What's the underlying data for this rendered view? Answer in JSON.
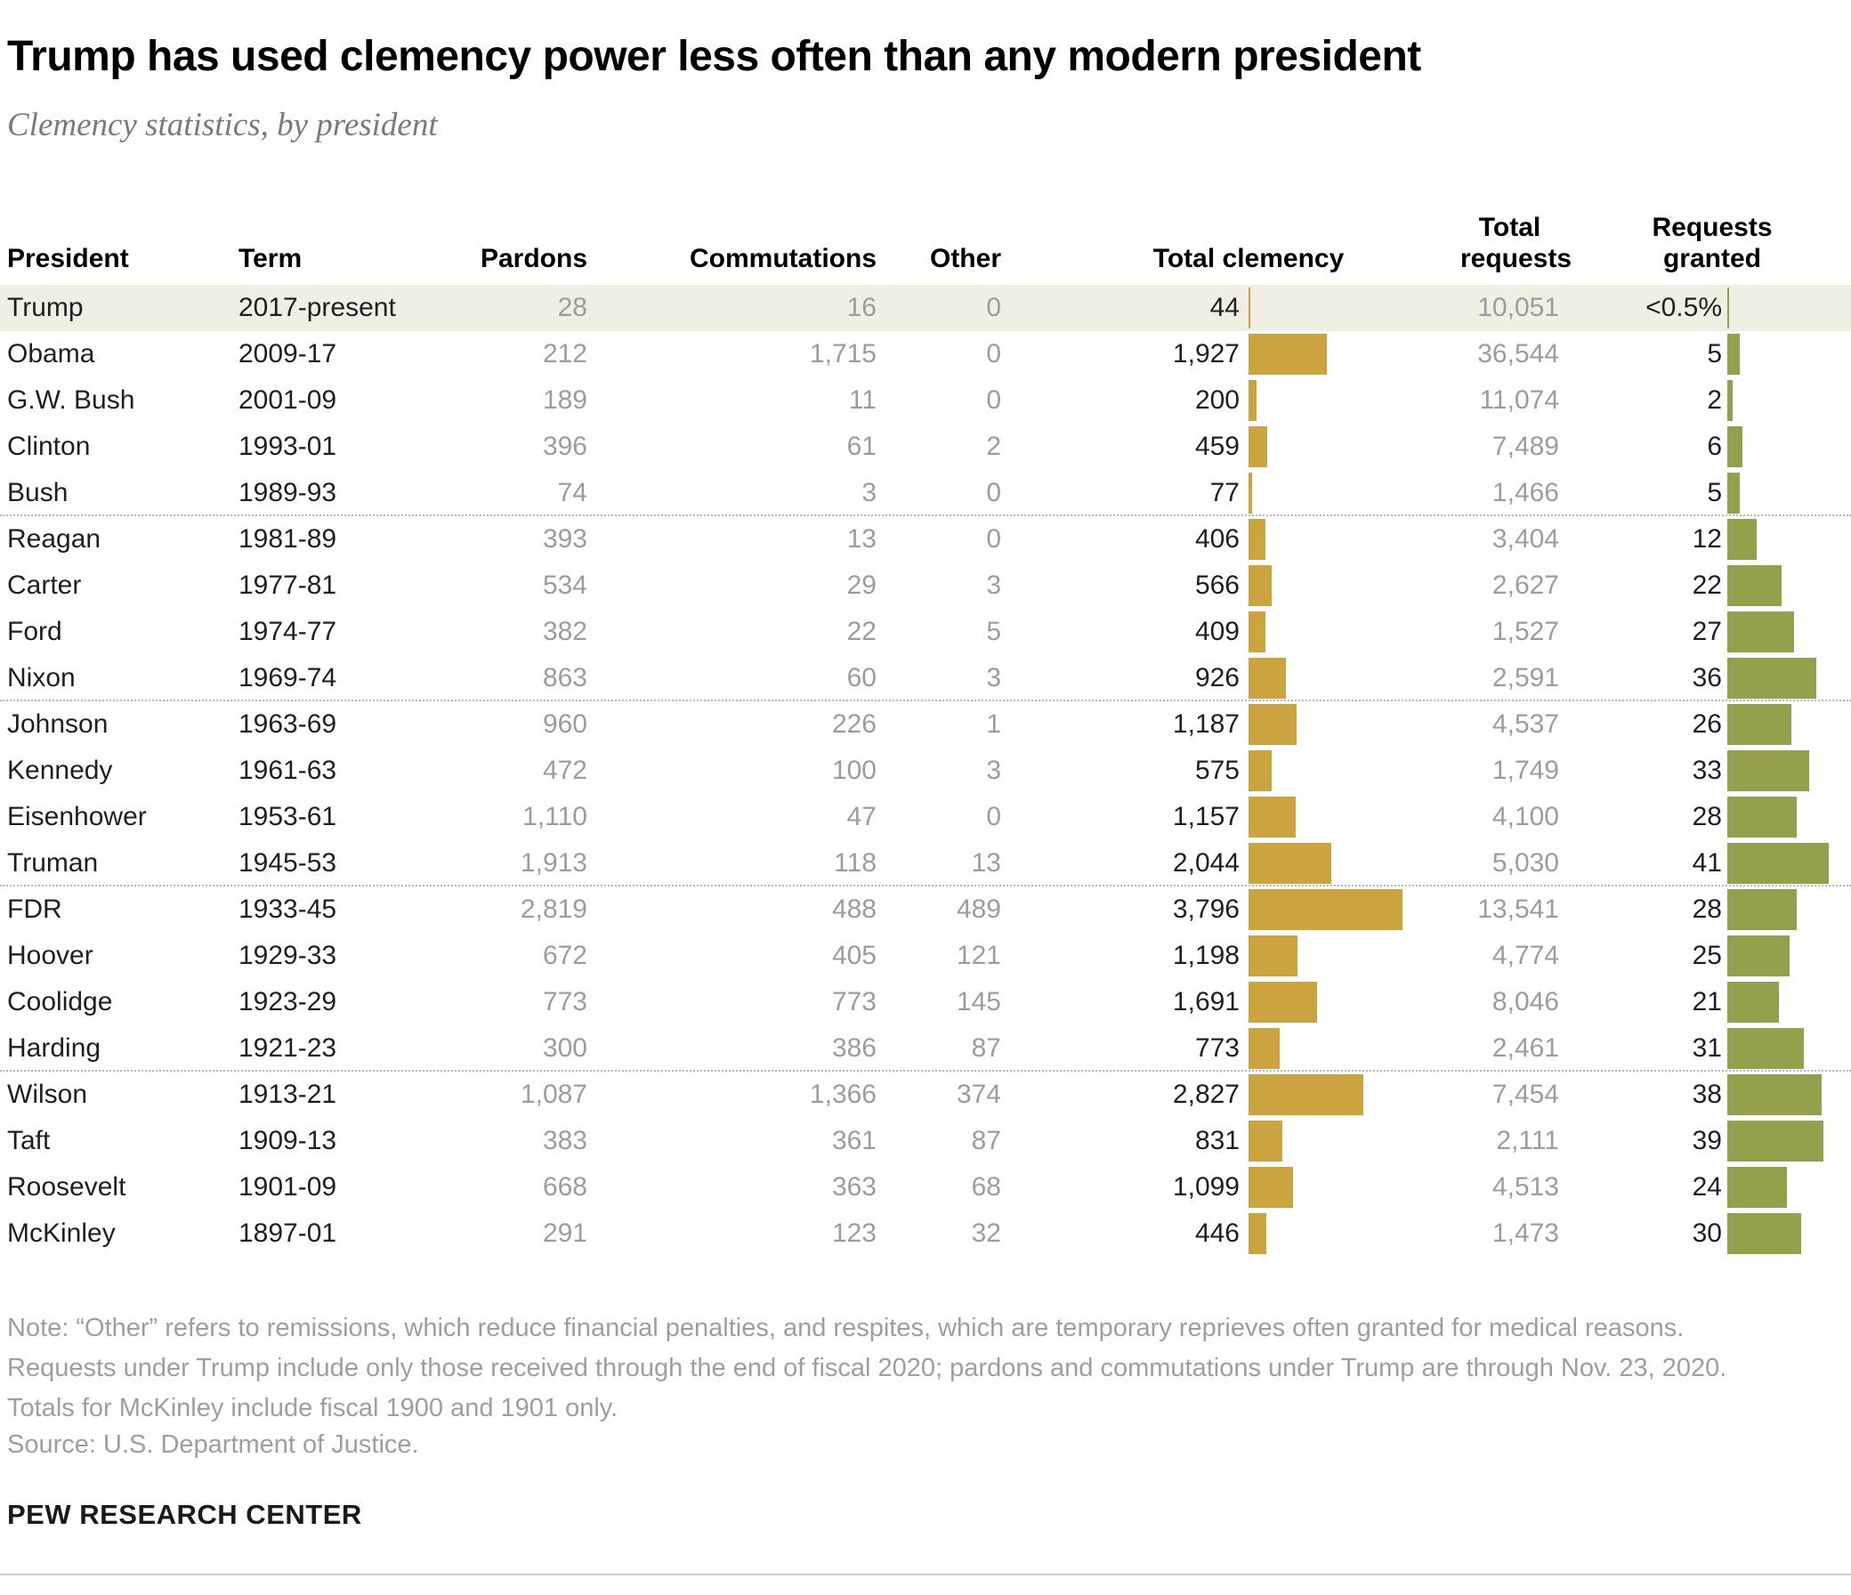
{
  "header": {
    "title": "Trump has used clemency power less often than any modern president",
    "subtitle": "Clemency statistics, by president"
  },
  "chart_data": {
    "type": "table",
    "title": "Trump has used clemency power less often than any modern president",
    "subtitle": "Clemency statistics, by president",
    "columns": [
      {
        "key": "president",
        "label": "President"
      },
      {
        "key": "term",
        "label": "Term"
      },
      {
        "key": "pardons",
        "label": "Pardons"
      },
      {
        "key": "commutations",
        "label": "Commutations"
      },
      {
        "key": "other",
        "label": "Other"
      },
      {
        "key": "total_clemency",
        "label": "Total clemency"
      },
      {
        "key": "total_requests",
        "label": "Total requests"
      },
      {
        "key": "requests_granted",
        "label": "Requests granted"
      }
    ],
    "bar_series": [
      {
        "name": "Total clemency",
        "color": "#cba440",
        "axis_max": 3796,
        "values": [
          44,
          1927,
          200,
          459,
          77,
          406,
          566,
          409,
          926,
          1187,
          575,
          1157,
          2044,
          3796,
          1198,
          1691,
          773,
          2827,
          831,
          1099,
          446
        ]
      },
      {
        "name": "Requests granted (%)",
        "color": "#94a04c",
        "axis_max": 41,
        "values": [
          0.5,
          5,
          2,
          6,
          5,
          12,
          22,
          27,
          36,
          26,
          33,
          28,
          41,
          28,
          25,
          21,
          31,
          38,
          39,
          24,
          30
        ]
      }
    ],
    "rows": [
      {
        "president": "Trump",
        "term": "2017-present",
        "pardons": "28",
        "commutations": "16",
        "other": "0",
        "total_clemency": "44",
        "total_requests": "10,051",
        "requests_granted": "<0.5%",
        "highlight": true
      },
      {
        "president": "Obama",
        "term": "2009-17",
        "pardons": "212",
        "commutations": "1,715",
        "other": "0",
        "total_clemency": "1,927",
        "total_requests": "36,544",
        "requests_granted": "5"
      },
      {
        "president": "G.W. Bush",
        "term": "2001-09",
        "pardons": "189",
        "commutations": "11",
        "other": "0",
        "total_clemency": "200",
        "total_requests": "11,074",
        "requests_granted": "2"
      },
      {
        "president": "Clinton",
        "term": "1993-01",
        "pardons": "396",
        "commutations": "61",
        "other": "2",
        "total_clemency": "459",
        "total_requests": "7,489",
        "requests_granted": "6"
      },
      {
        "president": "Bush",
        "term": "1989-93",
        "pardons": "74",
        "commutations": "3",
        "other": "0",
        "total_clemency": "77",
        "total_requests": "1,466",
        "requests_granted": "5",
        "separator_after": true
      },
      {
        "president": "Reagan",
        "term": "1981-89",
        "pardons": "393",
        "commutations": "13",
        "other": "0",
        "total_clemency": "406",
        "total_requests": "3,404",
        "requests_granted": "12"
      },
      {
        "president": "Carter",
        "term": "1977-81",
        "pardons": "534",
        "commutations": "29",
        "other": "3",
        "total_clemency": "566",
        "total_requests": "2,627",
        "requests_granted": "22"
      },
      {
        "president": "Ford",
        "term": "1974-77",
        "pardons": "382",
        "commutations": "22",
        "other": "5",
        "total_clemency": "409",
        "total_requests": "1,527",
        "requests_granted": "27"
      },
      {
        "president": "Nixon",
        "term": "1969-74",
        "pardons": "863",
        "commutations": "60",
        "other": "3",
        "total_clemency": "926",
        "total_requests": "2,591",
        "requests_granted": "36",
        "separator_after": true
      },
      {
        "president": "Johnson",
        "term": "1963-69",
        "pardons": "960",
        "commutations": "226",
        "other": "1",
        "total_clemency": "1,187",
        "total_requests": "4,537",
        "requests_granted": "26"
      },
      {
        "president": "Kennedy",
        "term": "1961-63",
        "pardons": "472",
        "commutations": "100",
        "other": "3",
        "total_clemency": "575",
        "total_requests": "1,749",
        "requests_granted": "33"
      },
      {
        "president": "Eisenhower",
        "term": "1953-61",
        "pardons": "1,110",
        "commutations": "47",
        "other": "0",
        "total_clemency": "1,157",
        "total_requests": "4,100",
        "requests_granted": "28"
      },
      {
        "president": "Truman",
        "term": "1945-53",
        "pardons": "1,913",
        "commutations": "118",
        "other": "13",
        "total_clemency": "2,044",
        "total_requests": "5,030",
        "requests_granted": "41",
        "separator_after": true
      },
      {
        "president": "FDR",
        "term": "1933-45",
        "pardons": "2,819",
        "commutations": "488",
        "other": "489",
        "total_clemency": "3,796",
        "total_requests": "13,541",
        "requests_granted": "28"
      },
      {
        "president": "Hoover",
        "term": "1929-33",
        "pardons": "672",
        "commutations": "405",
        "other": "121",
        "total_clemency": "1,198",
        "total_requests": "4,774",
        "requests_granted": "25"
      },
      {
        "president": "Coolidge",
        "term": "1923-29",
        "pardons": "773",
        "commutations": "773",
        "other": "145",
        "total_clemency": "1,691",
        "total_requests": "8,046",
        "requests_granted": "21"
      },
      {
        "president": "Harding",
        "term": "1921-23",
        "pardons": "300",
        "commutations": "386",
        "other": "87",
        "total_clemency": "773",
        "total_requests": "2,461",
        "requests_granted": "31",
        "separator_after": true
      },
      {
        "president": "Wilson",
        "term": "1913-21",
        "pardons": "1,087",
        "commutations": "1,366",
        "other": "374",
        "total_clemency": "2,827",
        "total_requests": "7,454",
        "requests_granted": "38"
      },
      {
        "president": "Taft",
        "term": "1909-13",
        "pardons": "383",
        "commutations": "361",
        "other": "87",
        "total_clemency": "831",
        "total_requests": "2,111",
        "requests_granted": "39"
      },
      {
        "president": "Roosevelt",
        "term": "1901-09",
        "pardons": "668",
        "commutations": "363",
        "other": "68",
        "total_clemency": "1,099",
        "total_requests": "4,513",
        "requests_granted": "24"
      },
      {
        "president": "McKinley",
        "term": "1897-01",
        "pardons": "291",
        "commutations": "123",
        "other": "32",
        "total_clemency": "446",
        "total_requests": "1,473",
        "requests_granted": "30"
      }
    ]
  },
  "colors": {
    "clemency_bar": "#cba440",
    "granted_bar": "#94a04c",
    "highlight_row": "#f0efe4"
  },
  "footer": {
    "note": "Note: “Other” refers to remissions, which reduce financial penalties, and respites, which are temporary reprieves often granted for medical reasons. Requests under Trump include only those received through the end of fiscal 2020; pardons and commutations under Trump are through Nov. 23, 2020. Totals for McKinley include fiscal 1900 and 1901 only.",
    "source": "Source: U.S. Department of Justice.",
    "brand": "PEW RESEARCH CENTER"
  }
}
